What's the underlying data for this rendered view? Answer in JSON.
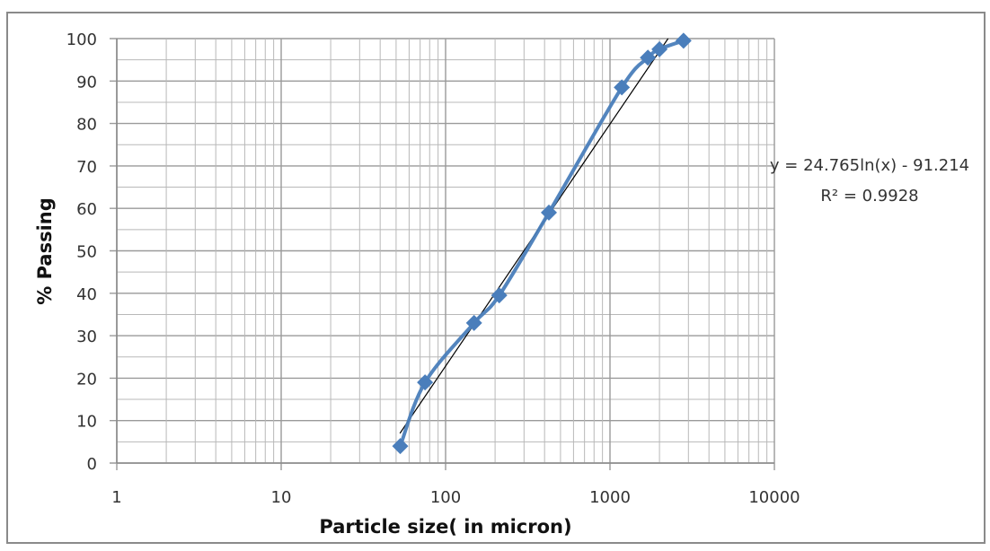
{
  "chart_data": {
    "type": "scatter",
    "title": "",
    "xlabel": "Particle size( in micron)",
    "ylabel": "% Passing",
    "xscale": "log",
    "xlim": [
      1,
      10000
    ],
    "ylim": [
      0,
      100
    ],
    "x_ticks": [
      "1",
      "10",
      "100",
      "1000",
      "10000"
    ],
    "y_ticks": [
      "0",
      "10",
      "20",
      "30",
      "40",
      "50",
      "60",
      "70",
      "80",
      "90",
      "100"
    ],
    "grid": true,
    "legend": null,
    "series": [
      {
        "name": "% Passing",
        "marker": "diamond",
        "line": "smooth",
        "color": "#4a7ebb",
        "x": [
          53,
          75,
          149,
          212,
          425,
          1180,
          1700,
          2000,
          2800
        ],
        "y": [
          4,
          19,
          33,
          39.5,
          59,
          88.5,
          95.5,
          97.5,
          99.5
        ]
      }
    ],
    "trendline": {
      "type": "logarithmic",
      "a": 24.765,
      "b": -91.214,
      "color": "#000000",
      "equation_label": "y = 24.765ln(x) - 91.214",
      "r2_label": "R² = 0.9928"
    }
  }
}
